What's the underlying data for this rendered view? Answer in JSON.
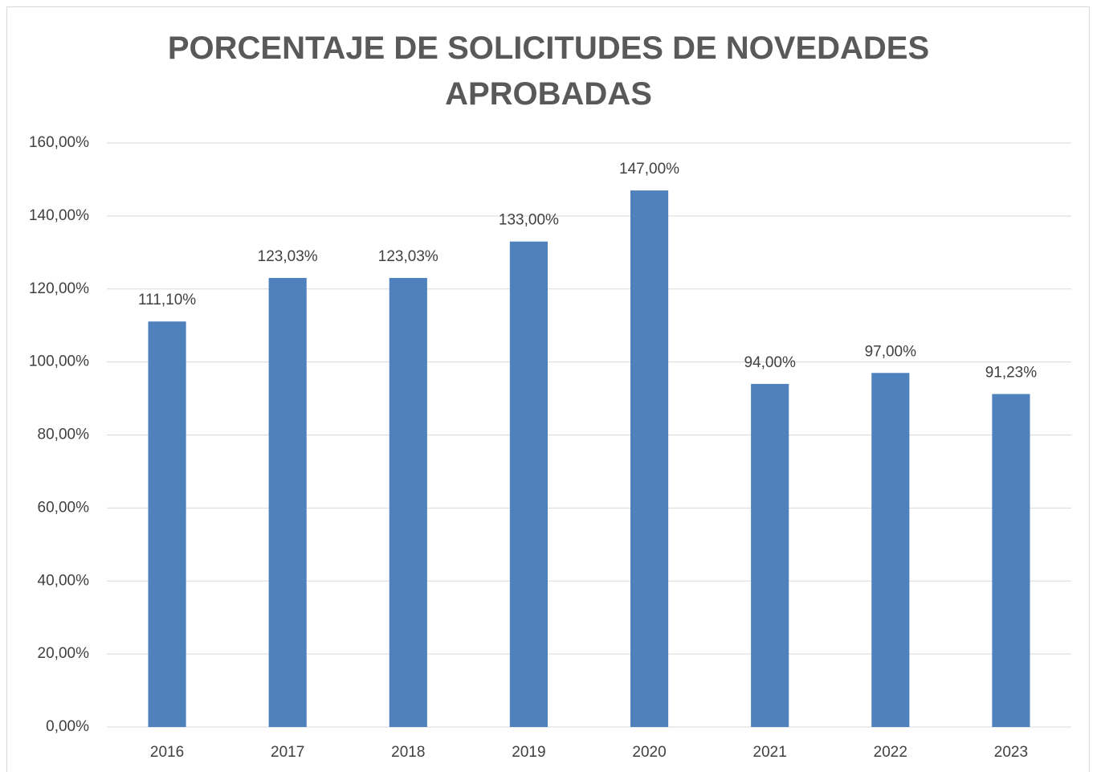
{
  "chart_data": {
    "type": "bar",
    "title": "PORCENTAJE DE SOLICITUDES DE NOVEDADES APROBADAS",
    "categories": [
      "2016",
      "2017",
      "2018",
      "2019",
      "2020",
      "2021",
      "2022",
      "2023"
    ],
    "values": [
      111.1,
      123.03,
      123.03,
      133.0,
      147.0,
      94.0,
      97.0,
      91.23
    ],
    "value_labels": [
      "111,10%",
      "123,03%",
      "123,03%",
      "133,00%",
      "147,00%",
      "94,00%",
      "97,00%",
      "91,23%"
    ],
    "color": "#4f81bd",
    "ylim": [
      0,
      160
    ],
    "yticks": [
      {
        "value": 0,
        "label": "0,00%"
      },
      {
        "value": 20,
        "label": "20,00%"
      },
      {
        "value": 40,
        "label": "40,00%"
      },
      {
        "value": 60,
        "label": "60,00%"
      },
      {
        "value": 80,
        "label": "80,00%"
      },
      {
        "value": 100,
        "label": "100,00%"
      },
      {
        "value": 120,
        "label": "120,00%"
      },
      {
        "value": 140,
        "label": "140,00%"
      },
      {
        "value": 160,
        "label": "160,00%"
      }
    ],
    "grid": true
  }
}
